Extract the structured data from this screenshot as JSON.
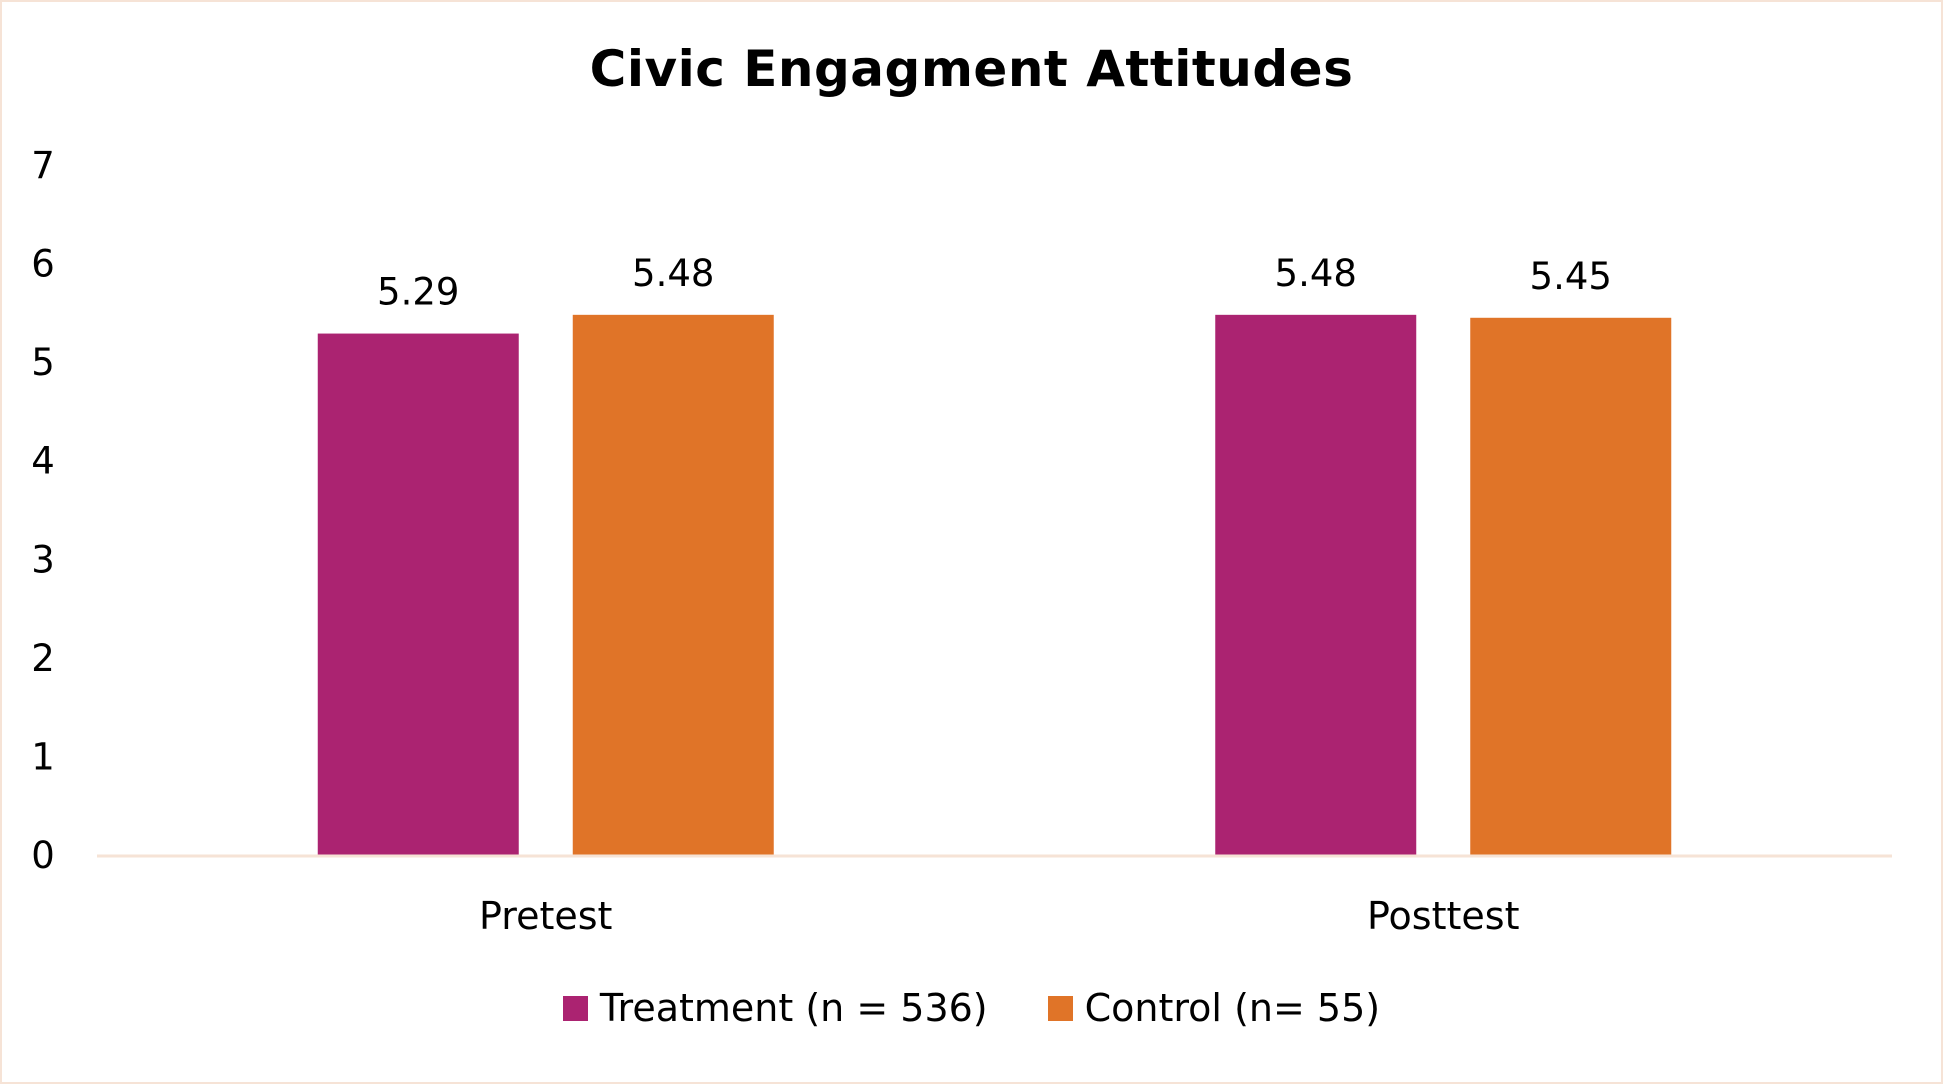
{
  "chart_data": {
    "type": "bar",
    "title": "Civic Engagment Attitudes",
    "categories": [
      "Pretest",
      "Posttest"
    ],
    "series": [
      {
        "name": "Treatment (n = 536)",
        "color": "#ab2371",
        "values": [
          5.29,
          5.48
        ],
        "labels": [
          "5.29",
          "5.48"
        ]
      },
      {
        "name": "Control (n= 55)",
        "color": "#e07428",
        "values": [
          5.48,
          5.45
        ],
        "labels": [
          "5.48",
          "5.45"
        ]
      }
    ],
    "ylim": [
      0,
      7
    ],
    "yticks": [
      "0",
      "1",
      "2",
      "3",
      "4",
      "5",
      "6",
      "7"
    ],
    "xlabel": "",
    "ylabel": "",
    "grid": false,
    "legend": "bottom-center",
    "axis_color": "#f6e3d6"
  }
}
